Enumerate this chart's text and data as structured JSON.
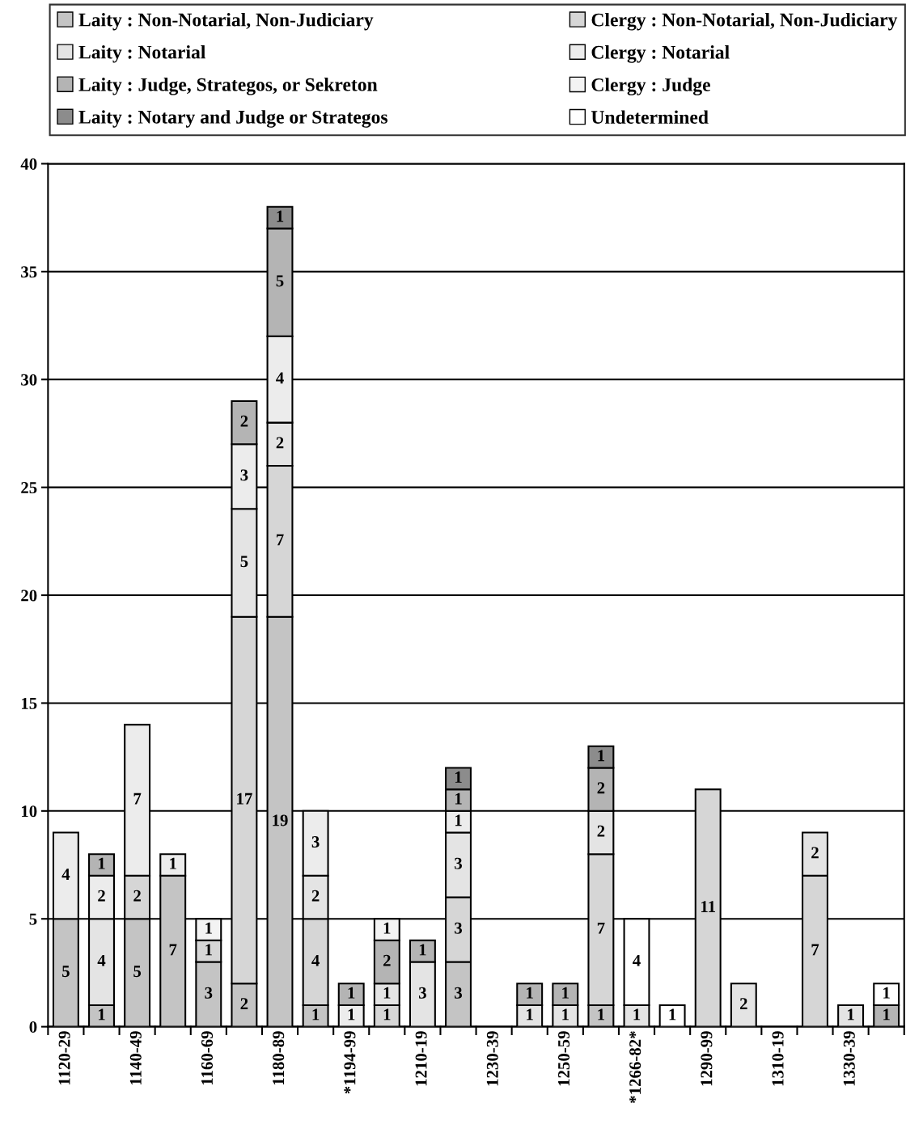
{
  "chart_data": {
    "type": "bar",
    "stacked": true,
    "data_labels": true,
    "grid": "y",
    "legend": "top",
    "categories": [
      "1120-29",
      null,
      "1140-49",
      null,
      "1160-69",
      null,
      "1180-89",
      null,
      "*1194-99",
      null,
      "1210-19",
      null,
      "1230-39",
      null,
      "1250-59",
      null,
      "*1266-82*",
      null,
      "1290-99",
      null,
      "1310-19",
      null,
      "1330-39",
      null
    ],
    "ylim": [
      0,
      40
    ],
    "yticks": [
      0,
      5,
      10,
      15,
      20,
      25,
      30,
      35,
      40
    ],
    "series": [
      {
        "name": "Laity : Non-Notarial, Non-Judiciary",
        "color": "#c4c4c4",
        "values": [
          5,
          1,
          5,
          7,
          3,
          2,
          19,
          1,
          null,
          null,
          null,
          3,
          null,
          null,
          null,
          1,
          null,
          null,
          null,
          null,
          null,
          null,
          null,
          null
        ]
      },
      {
        "name": "Clergy : Non-Notarial, Non-Judiciary",
        "color": "#d6d6d6",
        "values": [
          null,
          null,
          2,
          null,
          1,
          17,
          7,
          4,
          null,
          1,
          null,
          3,
          null,
          null,
          null,
          7,
          null,
          null,
          11,
          null,
          null,
          7,
          null,
          null
        ]
      },
      {
        "name": "Laity : Notarial",
        "color": "#e4e4e4",
        "values": [
          null,
          4,
          null,
          null,
          null,
          5,
          2,
          2,
          null,
          1,
          3,
          3,
          null,
          1,
          1,
          2,
          1,
          null,
          null,
          2,
          null,
          2,
          1,
          null
        ]
      },
      {
        "name": "Clergy : Notarial",
        "color": "#ececec",
        "values": [
          4,
          2,
          7,
          1,
          null,
          3,
          4,
          3,
          1,
          null,
          null,
          1,
          null,
          null,
          null,
          null,
          null,
          null,
          null,
          null,
          null,
          null,
          null,
          null
        ]
      },
      {
        "name": "Laity : Judge, Strategos, or Sekreton",
        "color": "#b4b4b4",
        "values": [
          null,
          1,
          null,
          null,
          null,
          2,
          5,
          null,
          1,
          2,
          1,
          1,
          null,
          1,
          1,
          2,
          null,
          null,
          null,
          null,
          null,
          null,
          null,
          1
        ]
      },
      {
        "name": "Clergy : Judge",
        "color": "#f3f3f3",
        "values": [
          null,
          null,
          null,
          null,
          1,
          null,
          null,
          null,
          null,
          1,
          null,
          null,
          null,
          null,
          null,
          null,
          null,
          null,
          null,
          null,
          null,
          null,
          null,
          null
        ]
      },
      {
        "name": "Laity : Notary and Judge or Strategos",
        "color": "#8c8c8c",
        "values": [
          null,
          null,
          null,
          null,
          null,
          null,
          1,
          null,
          null,
          null,
          null,
          1,
          null,
          null,
          null,
          1,
          null,
          null,
          null,
          null,
          null,
          null,
          null,
          null
        ]
      },
      {
        "name": "Undetermined",
        "color": "#ffffff",
        "values": [
          null,
          null,
          null,
          null,
          null,
          null,
          null,
          null,
          null,
          null,
          null,
          null,
          null,
          null,
          null,
          null,
          4,
          1,
          null,
          null,
          null,
          null,
          null,
          1
        ]
      }
    ]
  }
}
